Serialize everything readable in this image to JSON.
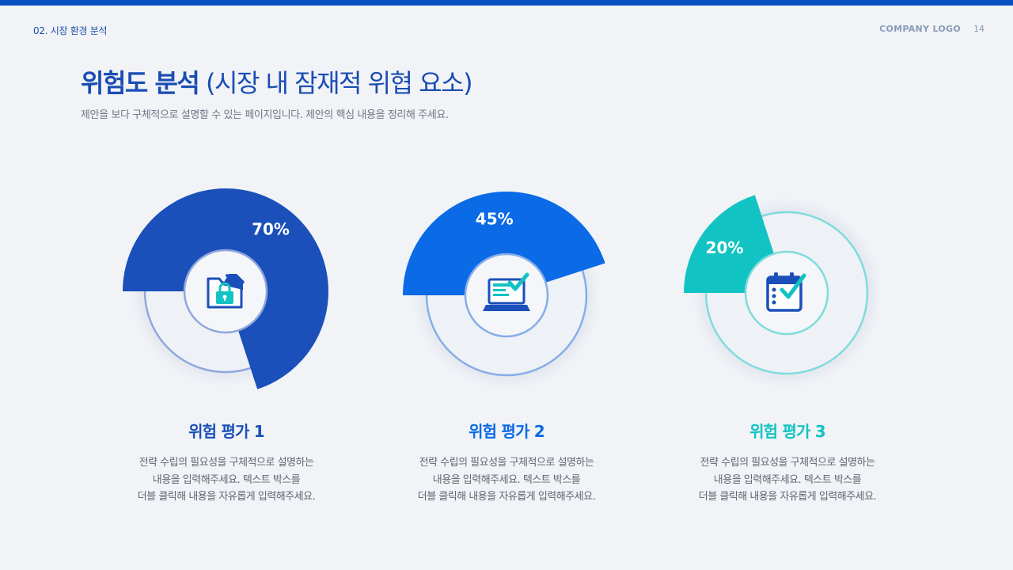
{
  "header": {
    "breadcrumb": "02. 시장 환경 분석",
    "company_logo": "COMPANY LOGO",
    "page_number": "14"
  },
  "title": {
    "main": "위험도 분석",
    "sub": "(시장 내 잠재적 위협 요소)"
  },
  "subtitle": "제안을 보다 구체적으로 설명할 수 있는 페이지입니다. 제안의 핵심 내용을 정리해 주세요.",
  "chart_data": [
    {
      "type": "pie",
      "series": [
        {
          "name": "위험 평가 1",
          "values": [
            70
          ],
          "labels": [
            "70%"
          ]
        }
      ],
      "color": "#1b4fba",
      "icon": "folder-lock-icon"
    },
    {
      "type": "pie",
      "series": [
        {
          "name": "위험 평가 2",
          "values": [
            45
          ],
          "labels": [
            "45%"
          ]
        }
      ],
      "color": "#0b6ae6",
      "icon": "laptop-check-icon"
    },
    {
      "type": "pie",
      "series": [
        {
          "name": "위험 평가 3",
          "values": [
            20
          ],
          "labels": [
            "20%"
          ]
        }
      ],
      "color": "#12c3c3",
      "icon": "calendar-check-icon"
    }
  ],
  "items": [
    {
      "title": "위험 평가 1",
      "title_color": "#1b4fba",
      "desc": [
        "전략 수립의 필요성을 구체적으로 설명하는",
        "내용을 입력해주세요. 텍스트 박스를",
        "더블 클릭해 내용을 자유롭게 입력해주세요."
      ]
    },
    {
      "title": "위험 평가 2",
      "title_color": "#0b6ae6",
      "desc": [
        "전략 수립의 필요성을 구체적으로 설명하는",
        "내용을 입력해주세요. 텍스트 박스를",
        "더블 클릭해 내용을 자유롭게 입력해주세요."
      ]
    },
    {
      "title": "위험 평가 3",
      "title_color": "#12c3c3",
      "desc": [
        "전략 수립의 필요성을 구체적으로 설명하는",
        "내용을 입력해주세요. 텍스트 박스를",
        "더블 클릭해 내용을 자유롭게 입력해주세요."
      ]
    }
  ]
}
